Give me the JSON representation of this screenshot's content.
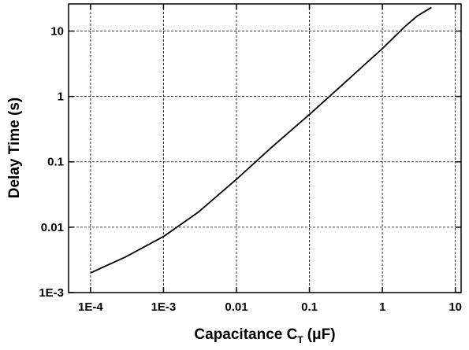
{
  "chart_data": {
    "type": "line",
    "xlabel": "Capacitance C",
    "xlabel_subscript": "T",
    "xlabel_unit": "(μF)",
    "ylabel": "Delay Time (s)",
    "x": [
      0.0001,
      0.0003,
      0.001,
      0.003,
      0.01,
      0.03,
      0.1,
      0.3,
      1,
      2,
      3,
      4.7
    ],
    "series": [
      {
        "name": "Delay Time",
        "color": "#000000",
        "values": [
          0.002,
          0.0035,
          0.0072,
          0.017,
          0.054,
          0.165,
          0.53,
          1.6,
          5.4,
          11.5,
          17,
          23
        ]
      }
    ],
    "xlog": true,
    "ylog": true,
    "xlim": [
      5e-05,
      12
    ],
    "ylim": [
      0.001,
      26
    ],
    "xticks": [
      {
        "value": 0.0001,
        "label": "1E-4"
      },
      {
        "value": 0.001,
        "label": "1E-3"
      },
      0.01,
      0.1,
      1,
      10
    ],
    "yticks": [
      {
        "value": 0.001,
        "label": "1E-3"
      },
      0.01,
      0.1,
      1,
      10
    ],
    "grid": true
  }
}
